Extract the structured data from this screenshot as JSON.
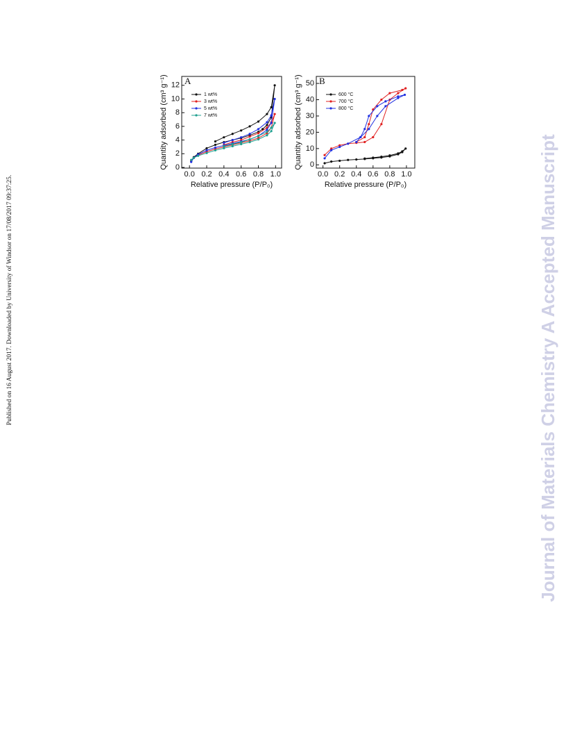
{
  "page": {
    "side_note": "Published on 16 August 2017. Downloaded by University of Windsor on 17/08/2017 09:37:25.",
    "watermark": "Journal of Materials Chemistry A Accepted Manuscript"
  },
  "chart_data": [
    {
      "type": "line",
      "panel_label": "A",
      "xlabel": "Relative pressure (P/P₀)",
      "ylabel": "Quantity adsorbed (cm³ g⁻¹)",
      "xlim": [
        -0.09,
        1.07
      ],
      "ylim": [
        -0.1,
        13.3
      ],
      "legend": "upper left",
      "xticks": [
        {
          "value": 0,
          "label": "0.0"
        },
        0.2,
        0.4,
        0.6,
        0.8,
        {
          "value": 1,
          "label": "1.0"
        }
      ],
      "yticks": [
        0,
        2,
        4,
        6,
        8,
        10,
        12
      ],
      "series": [
        {
          "name": "1 wt%",
          "color": "#111111",
          "x": [
            0.02,
            0.05,
            0.1,
            0.2,
            0.3,
            0.4,
            0.5,
            0.6,
            0.7,
            0.8,
            0.85,
            0.9,
            0.95,
            0.99,
            0.95,
            0.9,
            0.8,
            0.7,
            0.6,
            0.5,
            0.4,
            0.3
          ],
          "values": [
            0.9,
            1.5,
            2.0,
            2.8,
            3.3,
            3.7,
            4.0,
            4.3,
            4.7,
            5.2,
            5.6,
            6.2,
            7.3,
            12,
            8.8,
            7.8,
            6.7,
            6.0,
            5.4,
            4.9,
            4.4,
            3.8
          ]
        },
        {
          "name": "3 wt%",
          "color": "#e02020",
          "x": [
            0.02,
            0.05,
            0.1,
            0.2,
            0.3,
            0.4,
            0.5,
            0.6,
            0.7,
            0.8,
            0.9,
            0.95,
            0.99,
            0.95,
            0.9,
            0.8,
            0.7,
            0.6,
            0.5,
            0.4
          ],
          "values": [
            1.0,
            1.4,
            1.8,
            2.3,
            2.7,
            3.0,
            3.3,
            3.6,
            3.9,
            4.3,
            5.0,
            5.8,
            7.8,
            6.6,
            5.8,
            5.0,
            4.5,
            4.0,
            3.7,
            3.3
          ]
        },
        {
          "name": "5 wt%",
          "color": "#2030e0",
          "x": [
            0.02,
            0.05,
            0.1,
            0.2,
            0.3,
            0.4,
            0.5,
            0.6,
            0.7,
            0.8,
            0.9,
            0.95,
            0.99,
            0.95,
            0.9,
            0.8,
            0.7,
            0.6,
            0.5,
            0.4
          ],
          "values": [
            0.8,
            1.4,
            1.9,
            2.5,
            2.9,
            3.2,
            3.5,
            3.8,
            4.1,
            4.6,
            5.5,
            6.5,
            10,
            7.6,
            6.6,
            5.6,
            4.9,
            4.4,
            4.0,
            3.6
          ]
        },
        {
          "name": "7 wt%",
          "color": "#20a090",
          "x": [
            0.02,
            0.05,
            0.1,
            0.2,
            0.3,
            0.4,
            0.5,
            0.6,
            0.7,
            0.8,
            0.9,
            0.95,
            0.99,
            0.95,
            0.9,
            0.8,
            0.7,
            0.6,
            0.5,
            0.4
          ],
          "values": [
            1.1,
            1.4,
            1.7,
            2.1,
            2.5,
            2.8,
            3.1,
            3.4,
            3.7,
            4.1,
            4.7,
            5.3,
            6.5,
            5.8,
            5.2,
            4.6,
            4.1,
            3.7,
            3.4,
            3.1
          ]
        }
      ]
    },
    {
      "type": "line",
      "panel_label": "B",
      "xlabel": "Relative pressure (P/P₀)",
      "ylabel": "Quantity adsorbed (cm³ g⁻¹)",
      "xlim": [
        -0.08,
        1.1
      ],
      "ylim": [
        -2,
        54.3
      ],
      "legend": "upper left",
      "xticks": [
        {
          "value": 0,
          "label": "0.0"
        },
        0.2,
        0.4,
        0.6,
        0.8,
        {
          "value": 1,
          "label": "1.0"
        }
      ],
      "yticks": [
        0,
        10,
        20,
        30,
        40,
        50
      ],
      "series": [
        {
          "name": "600 °C",
          "color": "#111111",
          "x": [
            0.02,
            0.1,
            0.2,
            0.3,
            0.4,
            0.5,
            0.6,
            0.7,
            0.8,
            0.9,
            0.95,
            0.99,
            0.95,
            0.9,
            0.8,
            0.7,
            0.6,
            0.5
          ],
          "values": [
            1,
            2,
            2.5,
            3,
            3.3,
            3.6,
            4,
            4.5,
            5.2,
            6.5,
            7.8,
            10,
            8.3,
            7.0,
            5.8,
            5.0,
            4.4,
            3.9
          ]
        },
        {
          "name": "700 °C",
          "color": "#e02020",
          "x": [
            0.02,
            0.1,
            0.2,
            0.3,
            0.4,
            0.5,
            0.6,
            0.7,
            0.8,
            0.9,
            0.99,
            0.95,
            0.8,
            0.7,
            0.6,
            0.55,
            0.5,
            0.4
          ],
          "values": [
            6,
            10,
            12,
            13,
            13.5,
            14,
            17,
            25,
            40,
            44,
            47,
            46,
            44,
            40,
            34,
            25,
            17,
            14
          ]
        },
        {
          "name": "800 °C",
          "color": "#2030e0",
          "x": [
            0.02,
            0.1,
            0.2,
            0.3,
            0.45,
            0.55,
            0.65,
            0.75,
            0.9,
            0.98,
            0.9,
            0.75,
            0.65,
            0.55,
            0.5,
            0.45,
            0.4
          ],
          "values": [
            4,
            9,
            11,
            13,
            17,
            22,
            30,
            36,
            41,
            43,
            42,
            39,
            36,
            30,
            22,
            17,
            14
          ]
        }
      ]
    }
  ]
}
